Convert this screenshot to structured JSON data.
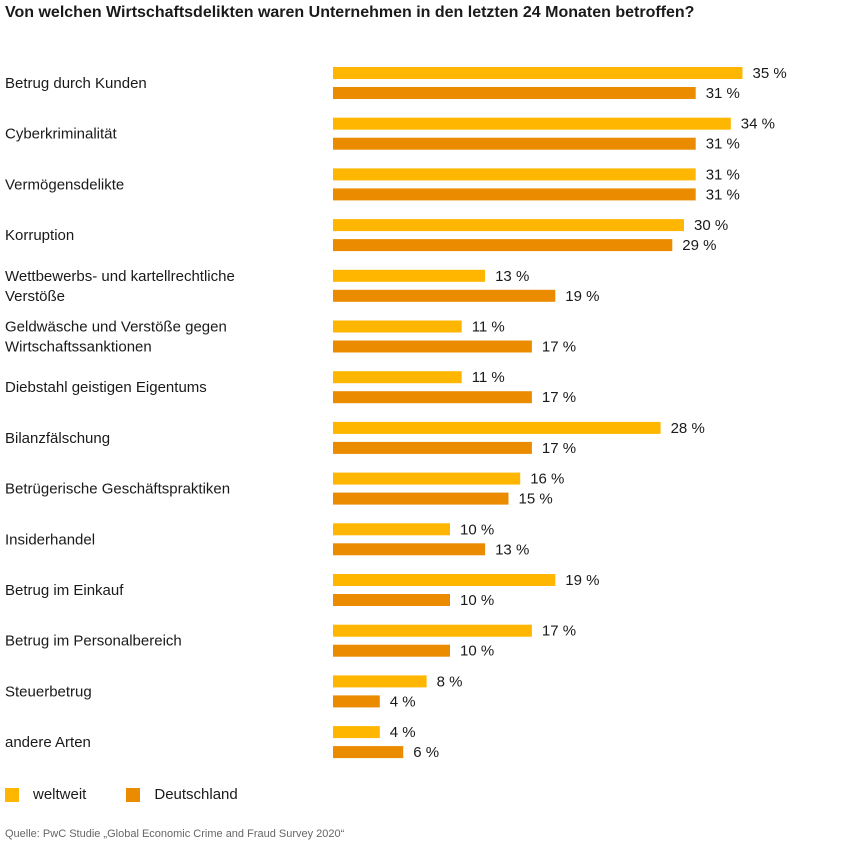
{
  "chart_data": {
    "type": "bar",
    "orientation": "horizontal",
    "title": "Von welchen Wirtschaftsdelikten waren Unternehmen in den letzten 24 Monaten betroffen?",
    "categories": [
      [
        "Betrug durch Kunden"
      ],
      [
        "Cyberkriminalität"
      ],
      [
        "Vermögensdelikte"
      ],
      [
        "Korruption"
      ],
      [
        "Wettbewerbs- und kartellrechtliche",
        "Verstöße"
      ],
      [
        "Geldwäsche und Verstöße gegen",
        "Wirtschaftssanktionen"
      ],
      [
        "Diebstahl geistigen Eigentums"
      ],
      [
        "Bilanzfälschung"
      ],
      [
        "Betrügerische Geschäftspraktiken"
      ],
      [
        "Insiderhandel"
      ],
      [
        "Betrug im Einkauf"
      ],
      [
        "Betrug im Personalbereich"
      ],
      [
        "Steuerbetrug"
      ],
      [
        "andere Arten"
      ]
    ],
    "series": [
      {
        "name": "weltweit",
        "color": "#FFB600",
        "values": [
          35,
          34,
          31,
          30,
          13,
          11,
          11,
          28,
          16,
          10,
          19,
          17,
          8,
          4
        ]
      },
      {
        "name": "Deutschland",
        "color": "#EB8C00",
        "values": [
          31,
          31,
          31,
          29,
          19,
          17,
          17,
          17,
          15,
          13,
          10,
          10,
          4,
          6
        ]
      }
    ],
    "value_suffix": " %",
    "legend_position": "bottom-left",
    "grid": false
  },
  "source": "Quelle: PwC Studie „Global Economic Crime and Fraud Survey 2020“"
}
